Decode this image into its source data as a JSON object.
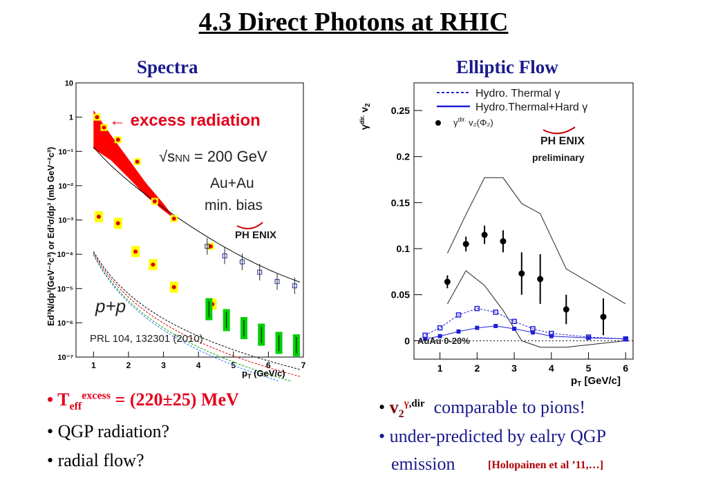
{
  "slide": {
    "title": "4.3 Direct Photons at RHIC",
    "left_heading": "Spectra",
    "right_heading": "Elliptic Flow"
  },
  "left_bullets": {
    "b1_prefix": "• T",
    "b1_sub": "eff",
    "b1_sup": "excess",
    "b1_rest": " = (220±25) MeV",
    "b2": "• QGP radiation?",
    "b3": "• radial flow?"
  },
  "right_bullets": {
    "b1_bullet": "• ",
    "b1_v": "v",
    "b1_sub": "2",
    "b1_sup_gamma": "γ",
    "b1_sup_rest": ",dir",
    "b1_text": "comparable to pions!",
    "b2": "• under-predicted by ealry QGP",
    "b3": "emission",
    "ref": "[Holopainen et al ’11,…]"
  },
  "chart_data": [
    {
      "type": "scatter",
      "yscale": "log",
      "xlabel": "p",
      "xlabel_sub": "T",
      "xlabel_unit": " (GeV/c)",
      "ylabel": "Ed³N/dp³(GeV⁻²c³) or Ed³σ/dp³ (mb GeV⁻²c³)",
      "xlim": [
        0.5,
        7
      ],
      "ylim": [
        1e-07,
        10
      ],
      "xticks": [
        "1",
        "2",
        "3",
        "4",
        "5",
        "6",
        "7"
      ],
      "yticks": [
        "10",
        "1",
        "10⁻¹",
        "10⁻²",
        "10⁻³",
        "10⁻⁴",
        "10⁻⁵",
        "10⁻⁶",
        "10⁻⁷"
      ],
      "annotations": {
        "excess": "← excess radiation",
        "energy": "√s",
        "energy_sub": "NN",
        "energy_rest": " = 200 GeV",
        "system": "Au+Au",
        "centrality": "min. bias",
        "pp_label": "p+p",
        "reference": "PRL 104, 132301 (2010)",
        "logo": "PH ENIX"
      },
      "colors": {
        "excess_band": "#ff0000",
        "auau_points": "#e00000",
        "yellow": "#ffff00",
        "green": "#00d000",
        "open_points": "#1a2a9c"
      },
      "auau_points": [
        {
          "x": 1.1,
          "y": 1.0
        },
        {
          "x": 1.3,
          "y": 0.5
        },
        {
          "x": 1.7,
          "y": 0.22
        },
        {
          "x": 2.25,
          "y": 0.05
        },
        {
          "x": 2.75,
          "y": 0.0035
        },
        {
          "x": 3.3,
          "y": 0.0011
        },
        {
          "x": 4.35,
          "y": 0.00017
        }
      ],
      "auau_open_points": [
        {
          "x": 4.25,
          "y": 0.00017
        },
        {
          "x": 4.75,
          "y": 9e-05
        },
        {
          "x": 5.25,
          "y": 6e-05
        },
        {
          "x": 5.75,
          "y": 3e-05
        },
        {
          "x": 6.25,
          "y": 1.6e-05
        },
        {
          "x": 6.75,
          "y": 1.2e-05
        }
      ],
      "pp_points": [
        {
          "x": 1.15,
          "y": 0.00125
        },
        {
          "x": 1.7,
          "y": 0.0008
        },
        {
          "x": 2.2,
          "y": 0.00012
        },
        {
          "x": 2.7,
          "y": 5e-05
        },
        {
          "x": 3.3,
          "y": 1.1e-05
        },
        {
          "x": 4.4,
          "y": 3.5e-06
        }
      ],
      "pp_green": [
        {
          "x": 4.3,
          "y": 2.5e-06
        },
        {
          "x": 4.8,
          "y": 1.2e-06
        },
        {
          "x": 5.3,
          "y": 7e-07
        },
        {
          "x": 5.8,
          "y": 4.5e-07
        },
        {
          "x": 6.3,
          "y": 2.6e-07
        },
        {
          "x": 6.8,
          "y": 2.2e-07
        }
      ]
    },
    {
      "type": "scatter",
      "title": "",
      "xlabel": "p",
      "xlabel_sub": "T",
      "xlabel_unit": " [GeV/c]",
      "ylabel": "γ",
      "ylabel_sup": "dir.",
      "ylabel_main": " v",
      "ylabel_sub": "2",
      "xlim": [
        0.3,
        6.2
      ],
      "ylim": [
        -0.02,
        0.28
      ],
      "xticks": [
        "1",
        "2",
        "3",
        "4",
        "5",
        "6"
      ],
      "yticks": [
        "0",
        "0.05",
        "0.1",
        "0.15",
        "0.2",
        "0.25"
      ],
      "legend": {
        "dashed": "Hydro. Thermal γ",
        "solid": "Hydro.Thermal+Hard γ",
        "points": "γ",
        "points_sup": "dir.",
        "points_rest": " v₂(Φ₂)"
      },
      "labels": {
        "logo": "PH ENIX",
        "prelim": "preliminary",
        "system": "AuAu 0-20%"
      },
      "colors": {
        "hydro": "#1f1fd9",
        "points": "#000000"
      },
      "points": [
        {
          "x": 1.2,
          "y": 0.064,
          "err": 0.007
        },
        {
          "x": 1.7,
          "y": 0.105,
          "err": 0.008
        },
        {
          "x": 2.2,
          "y": 0.115,
          "err": 0.01
        },
        {
          "x": 2.7,
          "y": 0.108,
          "err": 0.012
        },
        {
          "x": 3.2,
          "y": 0.073,
          "err": 0.023
        },
        {
          "x": 3.7,
          "y": 0.067,
          "err": 0.027
        },
        {
          "x": 4.4,
          "y": 0.034,
          "err": 0.016
        },
        {
          "x": 5.4,
          "y": 0.026,
          "err": 0.02
        }
      ],
      "upper_band": [
        {
          "x": 1.2,
          "y": 0.095
        },
        {
          "x": 1.7,
          "y": 0.137
        },
        {
          "x": 2.2,
          "y": 0.177
        },
        {
          "x": 2.7,
          "y": 0.177
        },
        {
          "x": 3.2,
          "y": 0.149
        },
        {
          "x": 3.7,
          "y": 0.138
        },
        {
          "x": 4.4,
          "y": 0.078
        },
        {
          "x": 6.0,
          "y": 0.04
        }
      ],
      "lower_band": [
        {
          "x": 1.2,
          "y": 0.04
        },
        {
          "x": 1.7,
          "y": 0.076
        },
        {
          "x": 2.2,
          "y": 0.06
        },
        {
          "x": 2.7,
          "y": 0.033
        },
        {
          "x": 3.2,
          "y": 0.0
        },
        {
          "x": 3.7,
          "y": -0.007
        },
        {
          "x": 4.4,
          "y": -0.007
        },
        {
          "x": 6.0,
          "y": 0.0
        }
      ],
      "hydro_thermal": [
        {
          "x": 0.6,
          "y": 0.006
        },
        {
          "x": 1.0,
          "y": 0.014
        },
        {
          "x": 1.5,
          "y": 0.028
        },
        {
          "x": 2.0,
          "y": 0.035
        },
        {
          "x": 2.5,
          "y": 0.031
        },
        {
          "x": 3.0,
          "y": 0.021
        },
        {
          "x": 3.5,
          "y": 0.013
        },
        {
          "x": 4.0,
          "y": 0.008
        },
        {
          "x": 5.0,
          "y": 0.004
        },
        {
          "x": 6.0,
          "y": 0.002
        }
      ],
      "hydro_hard": [
        {
          "x": 0.6,
          "y": 0.002
        },
        {
          "x": 1.0,
          "y": 0.005
        },
        {
          "x": 1.5,
          "y": 0.01
        },
        {
          "x": 2.0,
          "y": 0.014
        },
        {
          "x": 2.5,
          "y": 0.016
        },
        {
          "x": 3.0,
          "y": 0.013
        },
        {
          "x": 3.5,
          "y": 0.009
        },
        {
          "x": 4.0,
          "y": 0.005
        },
        {
          "x": 5.0,
          "y": 0.003
        },
        {
          "x": 6.0,
          "y": 0.002
        }
      ]
    }
  ]
}
